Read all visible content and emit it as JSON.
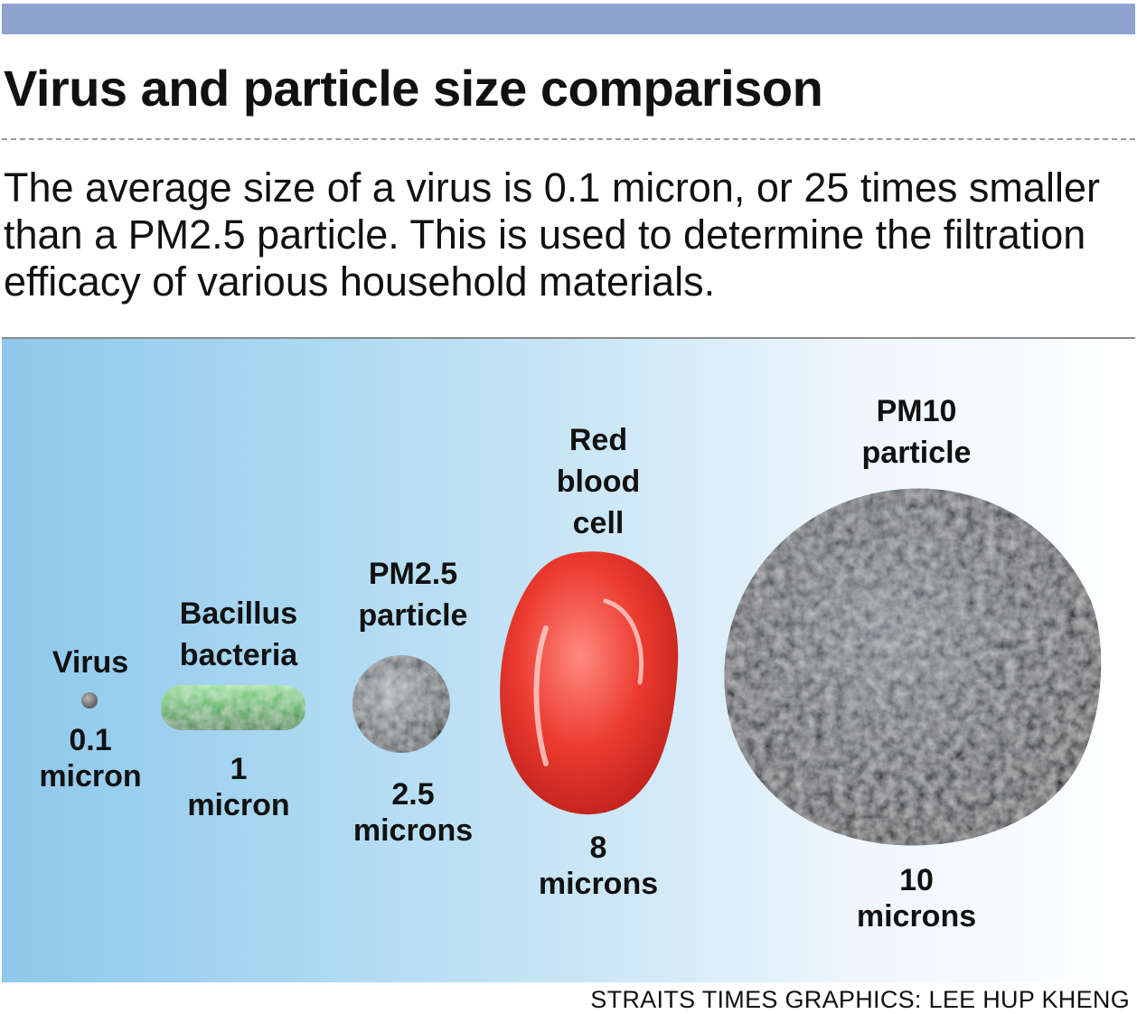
{
  "header": {
    "title": "Virus and particle size comparison",
    "subtitle": "The average size of a virus is 0.1 micron, or 25 times smaller than a PM2.5 particle. This is used to determine the filtration efficacy of various household materials."
  },
  "colors": {
    "top_bar": "#8fa3d3",
    "bacteria": "#4fb35a",
    "blood_cell": "#e8322a",
    "particle": "#3a3d44"
  },
  "items": [
    {
      "name": "Virus",
      "size_value": "0.1",
      "size_unit": "micron",
      "icon": "virus-icon"
    },
    {
      "name_line1": "Bacillus",
      "name_line2": "bacteria",
      "size_value": "1",
      "size_unit": "micron",
      "icon": "bacteria-icon"
    },
    {
      "name_line1": "PM2.5",
      "name_line2": "particle",
      "size_value": "2.5",
      "size_unit": "microns",
      "icon": "pm25-particle-icon"
    },
    {
      "name_line1": "Red",
      "name_line2": "blood",
      "name_line3": "cell",
      "size_value": "8",
      "size_unit": "microns",
      "icon": "red-blood-cell-icon"
    },
    {
      "name_line1": "PM10",
      "name_line2": "particle",
      "size_value": "10",
      "size_unit": "microns",
      "icon": "pm10-particle-icon"
    }
  ],
  "footer": {
    "credit": "STRAITS TIMES GRAPHICS: LEE HUP KHENG"
  }
}
